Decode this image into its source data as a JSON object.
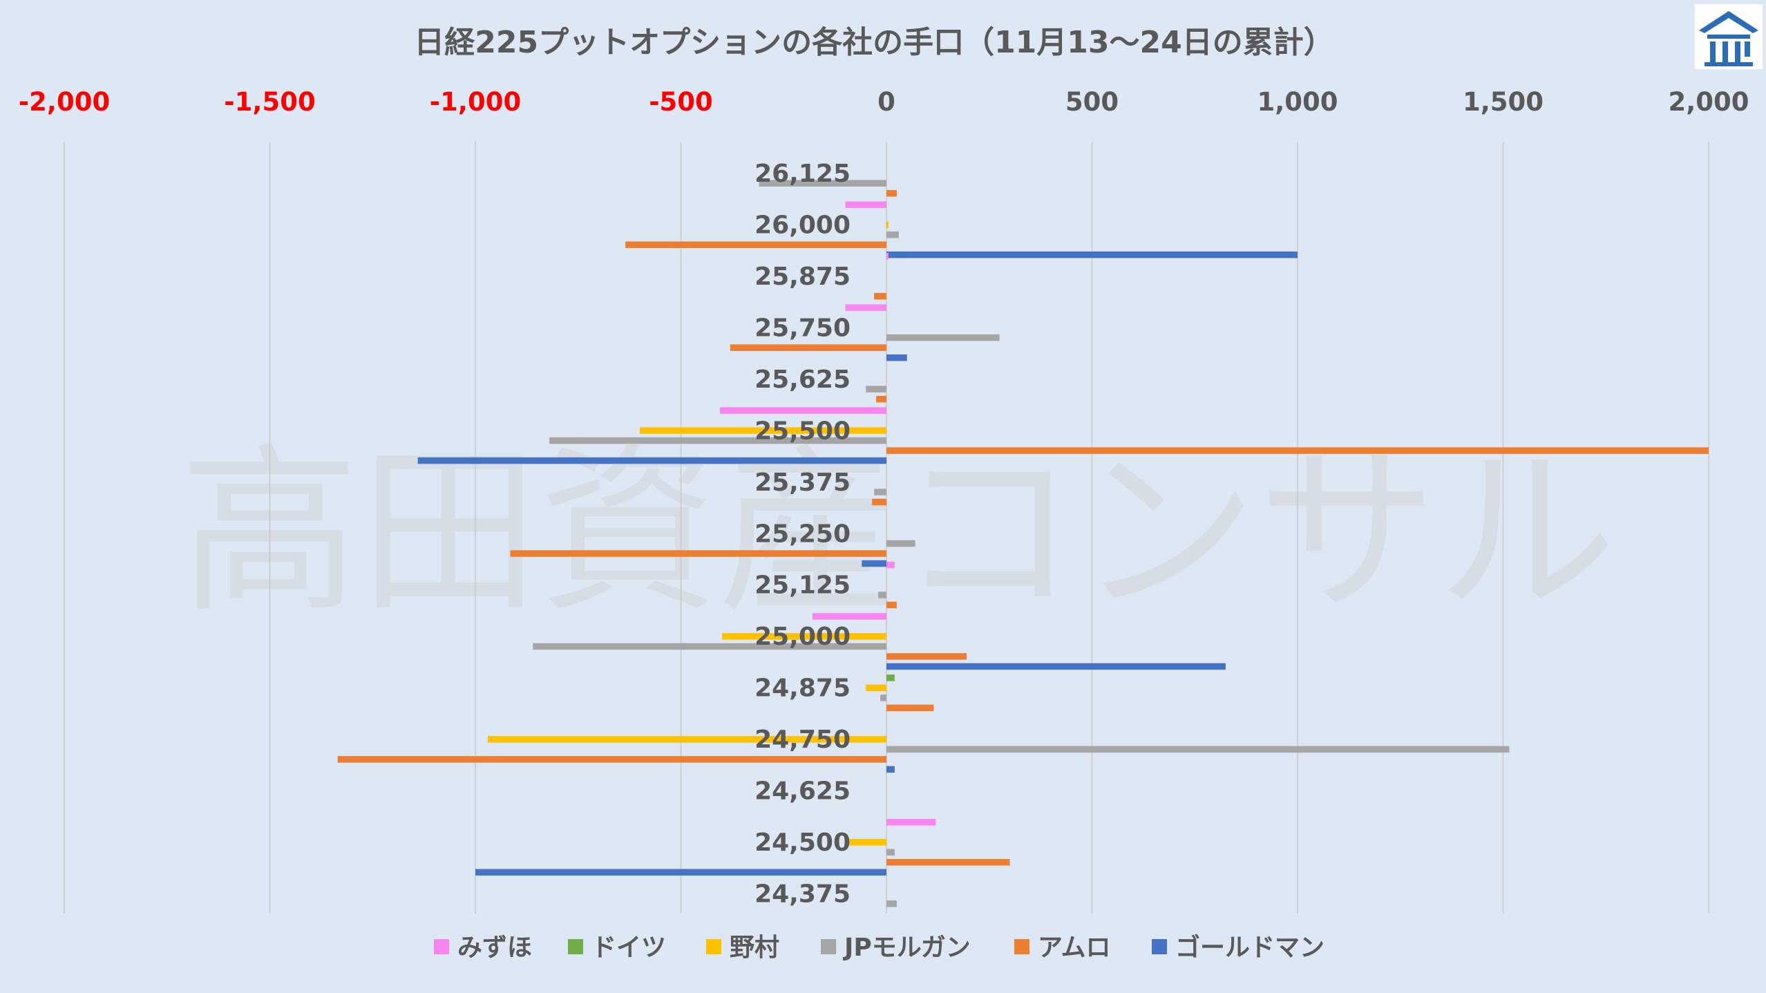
{
  "chart_data": {
    "type": "bar",
    "orientation": "horizontal",
    "title": "日経225プットオプションの各社の手口（11月13～24日の累計）",
    "watermark": "高田資産コンサル",
    "xlim": [
      -2000,
      2000
    ],
    "x_ticks": [
      -2000,
      -1500,
      -1000,
      -500,
      0,
      500,
      1000,
      1500,
      2000
    ],
    "x_tick_labels": [
      "-2,000",
      "-1,500",
      "-1,000",
      "-500",
      "0",
      "500",
      "1,000",
      "1,500",
      "2,000"
    ],
    "negative_tick_color": "#ff0000",
    "positive_tick_color": "#595959",
    "vertical_gridlines": true,
    "legend_position": "bottom",
    "categories": [
      "26,125",
      "26,000",
      "25,875",
      "25,750",
      "25,625",
      "25,500",
      "25,375",
      "25,250",
      "25,125",
      "25,000",
      "24,875",
      "24,750",
      "24,625",
      "24,500",
      "24,375"
    ],
    "series": [
      {
        "name": "みずほ",
        "color": "#f986f0",
        "values": [
          0,
          -100,
          5,
          -100,
          0,
          -405,
          0,
          0,
          20,
          -180,
          0,
          0,
          0,
          120,
          0
        ]
      },
      {
        "name": "ドイツ",
        "color": "#70ad47",
        "values": [
          0,
          0,
          0,
          0,
          0,
          0,
          0,
          0,
          0,
          0,
          20,
          0,
          0,
          0,
          0
        ]
      },
      {
        "name": "野村",
        "color": "#ffc000",
        "values": [
          0,
          5,
          0,
          0,
          0,
          -600,
          0,
          0,
          0,
          -400,
          -50,
          -970,
          0,
          -90,
          0
        ]
      },
      {
        "name": "JPモルガン",
        "color": "#a5a5a5",
        "values": [
          -310,
          30,
          0,
          275,
          -50,
          -820,
          -30,
          70,
          -20,
          -860,
          -15,
          1515,
          0,
          20,
          25
        ]
      },
      {
        "name": "アムロ",
        "color": "#ed7d31",
        "values": [
          25,
          -635,
          -30,
          -380,
          -25,
          2000,
          -35,
          -915,
          25,
          195,
          115,
          -1335,
          0,
          300,
          0
        ]
      },
      {
        "name": "ゴールドマン",
        "color": "#4472c4",
        "values": [
          0,
          1000,
          0,
          50,
          0,
          -1140,
          0,
          -60,
          0,
          825,
          0,
          20,
          0,
          -1000,
          0
        ]
      }
    ]
  }
}
